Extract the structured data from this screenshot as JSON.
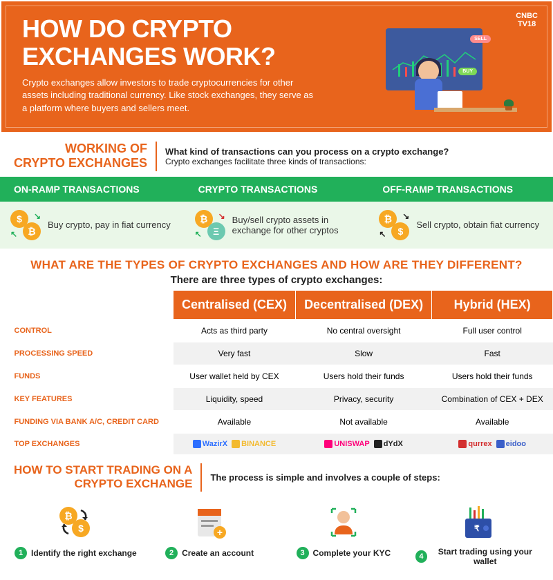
{
  "header": {
    "title_line1": "HOW DO CRYPTO",
    "title_line2": "EXCHANGES WORK?",
    "subtitle": "Crypto exchanges allow investors to trade cryptocurrencies for other assets including traditional currency.\nLike stock exchanges, they serve as a platform where buyers and sellers meet.",
    "logo_line1": "CNBC",
    "logo_line2": "TV18",
    "chart_buy": "BUY",
    "chart_sell": "SELL",
    "background_color": "#e8641c",
    "chart_bg": "#3d5a9e"
  },
  "transactions": {
    "section_title_l1": "WORKING OF",
    "section_title_l2": "CRYPTO EXCHANGES",
    "question": "What kind of transactions can you process on a crypto exchange?",
    "answer": "Crypto exchanges facilitate three kinds of transactions:",
    "header_bg": "#21b05a",
    "body_bg": "#eaf7e8",
    "items": [
      {
        "title": "ON-RAMP TRANSACTIONS",
        "desc": "Buy crypto, pay in fiat currency",
        "arr1_color": "#21b05a",
        "arr2_color": "#21b05a"
      },
      {
        "title": "CRYPTO TRANSACTIONS",
        "desc": "Buy/sell crypto assets in exchange for other cryptos",
        "arr1_color": "#d32f2f",
        "arr2_color": "#21b05a"
      },
      {
        "title": "OFF-RAMP TRANSACTIONS",
        "desc": "Sell crypto, obtain fiat currency",
        "arr1_color": "#222",
        "arr2_color": "#222"
      }
    ]
  },
  "types": {
    "question": "WHAT ARE THE TYPES OF CRYPTO EXCHANGES AND HOW ARE THEY DIFFERENT?",
    "answer": "There are three types of crypto exchanges:",
    "header_bg": "#e8641c",
    "columns": [
      "Centralised (CEX)",
      "Decentralised (DEX)",
      "Hybrid (HEX)"
    ],
    "rows": [
      {
        "label": "CONTROL",
        "cells": [
          "Acts as third party",
          "No central oversight",
          "Full user control"
        ]
      },
      {
        "label": "PROCESSING SPEED",
        "cells": [
          "Very fast",
          "Slow",
          "Fast"
        ]
      },
      {
        "label": "FUNDS",
        "cells": [
          "User wallet held by CEX",
          "Users hold their funds",
          "Users hold their funds"
        ]
      },
      {
        "label": "KEY FEATURES",
        "cells": [
          "Liquidity, speed",
          "Privacy, security",
          "Combination of CEX + DEX"
        ]
      },
      {
        "label": "FUNDING VIA BANK A/C, CREDIT CARD",
        "cells": [
          "Available",
          "Not available",
          "Available"
        ]
      }
    ],
    "exchanges_label": "TOP EXCHANGES",
    "exchanges": {
      "cex": [
        {
          "name": "WazirX",
          "color": "#2d6fff"
        },
        {
          "name": "BINANCE",
          "color": "#f3ba2f"
        }
      ],
      "dex": [
        {
          "name": "UNISWAP",
          "color": "#ff007a"
        },
        {
          "name": "dYdX",
          "color": "#222"
        }
      ],
      "hex": [
        {
          "name": "qurrex",
          "color": "#d32f2f"
        },
        {
          "name": "eidoo",
          "color": "#3a5fc9"
        }
      ]
    }
  },
  "howto": {
    "title_l1": "HOW TO START TRADING ON A",
    "title_l2": "CRYPTO EXCHANGE",
    "desc": "The process is simple and involves a couple of steps:",
    "step_num_bg": "#21b05a",
    "steps": [
      {
        "num": "1",
        "label": "Identify the right exchange"
      },
      {
        "num": "2",
        "label": "Create an account"
      },
      {
        "num": "3",
        "label": "Complete your KYC"
      },
      {
        "num": "4",
        "label": "Start trading using your wallet"
      }
    ]
  }
}
